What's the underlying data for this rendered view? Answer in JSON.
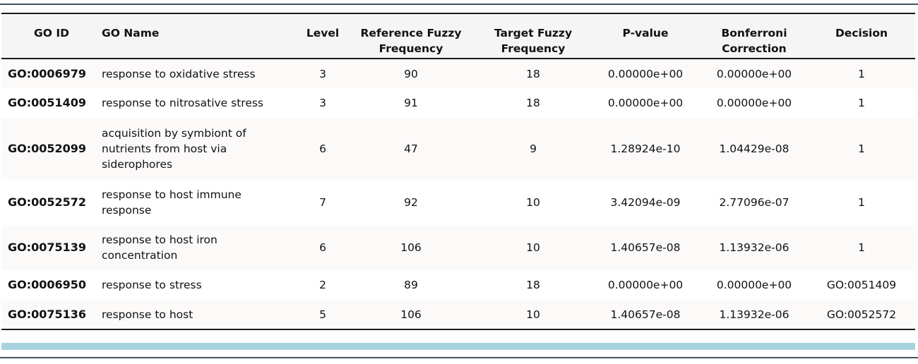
{
  "table": {
    "headers": [
      {
        "label": "GO ID",
        "align": "center"
      },
      {
        "label": "GO Name",
        "align": "left"
      },
      {
        "label": "Level",
        "align": "center"
      },
      {
        "label": "Reference Fuzzy Frequency",
        "align": "center"
      },
      {
        "label": "Target Fuzzy Frequency",
        "align": "center"
      },
      {
        "label": "P-value",
        "align": "center"
      },
      {
        "label": "Bonferroni Correction",
        "align": "center"
      },
      {
        "label": "Decision",
        "align": "center"
      }
    ],
    "rows": [
      {
        "go_id": "GO:0006979",
        "go_name": "response to oxidative stress",
        "level": "3",
        "ref_freq": "90",
        "target_freq": "18",
        "p_value": "0.00000e+00",
        "bonferroni": "0.00000e+00",
        "decision": "1"
      },
      {
        "go_id": "GO:0051409",
        "go_name": "response to nitrosative stress",
        "level": "3",
        "ref_freq": "91",
        "target_freq": "18",
        "p_value": "0.00000e+00",
        "bonferroni": "0.00000e+00",
        "decision": "1"
      },
      {
        "go_id": "GO:0052099",
        "go_name": "acquisition by symbiont of nutrients from host via siderophores",
        "level": "6",
        "ref_freq": "47",
        "target_freq": "9",
        "p_value": "1.28924e-10",
        "bonferroni": "1.04429e-08",
        "decision": "1"
      },
      {
        "go_id": "GO:0052572",
        "go_name": "response to host immune response",
        "level": "7",
        "ref_freq": "92",
        "target_freq": "10",
        "p_value": "3.42094e-09",
        "bonferroni": "2.77096e-07",
        "decision": "1"
      },
      {
        "go_id": "GO:0075139",
        "go_name": "response to host iron concentration",
        "level": "6",
        "ref_freq": "106",
        "target_freq": "10",
        "p_value": "1.40657e-08",
        "bonferroni": "1.13932e-06",
        "decision": "1"
      },
      {
        "go_id": "GO:0006950",
        "go_name": "response to stress",
        "level": "2",
        "ref_freq": "89",
        "target_freq": "18",
        "p_value": "0.00000e+00",
        "bonferroni": "0.00000e+00",
        "decision": "GO:0051409"
      },
      {
        "go_id": "GO:0075136",
        "go_name": "response to host",
        "level": "5",
        "ref_freq": "106",
        "target_freq": "10",
        "p_value": "1.40657e-08",
        "bonferroni": "1.13932e-06",
        "decision": "GO:0052572"
      }
    ]
  },
  "colors": {
    "header_bg": "#f5f5f5",
    "row_odd_bg": "#fcf9f9",
    "scrollbar": "#a8d3de",
    "rule": "#3f5564"
  }
}
